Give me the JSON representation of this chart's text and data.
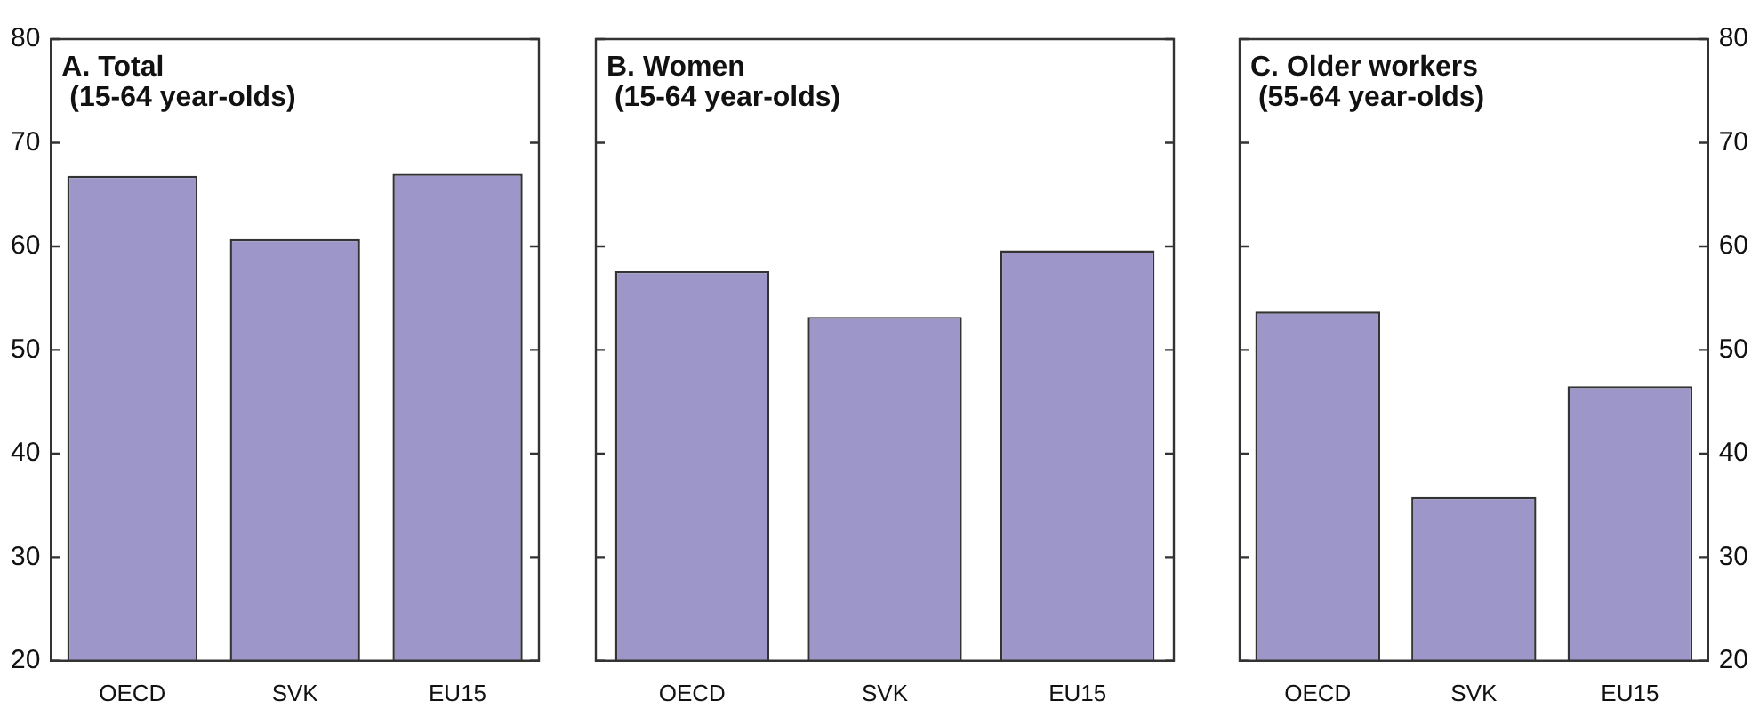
{
  "chart_data": [
    {
      "type": "bar",
      "title": "A. Total",
      "subtitle": "(15-64 year-olds)",
      "categories": [
        "OECD",
        "SVK",
        "EU15"
      ],
      "series": [
        {
          "color": "#9d97c9",
          "values": [
            66.8,
            60.7,
            67.0
          ]
        }
      ],
      "ylim": [
        20,
        80
      ],
      "yticks": [
        20,
        30,
        40,
        50,
        60,
        70,
        80
      ],
      "grid": false,
      "legend": false
    },
    {
      "type": "bar",
      "title": "B. Women",
      "subtitle": "(15-64 year-olds)",
      "categories": [
        "OECD",
        "SVK",
        "EU15"
      ],
      "series": [
        {
          "color": "#9d97c9",
          "values": [
            57.6,
            53.2,
            59.6
          ]
        }
      ],
      "ylim": [
        20,
        80
      ],
      "yticks": [
        20,
        30,
        40,
        50,
        60,
        70,
        80
      ],
      "grid": false,
      "legend": false,
      "tick_labels": "x"
    },
    {
      "type": "bar",
      "title": "C. Older workers",
      "subtitle": "(55-64 year-olds)",
      "categories": [
        "OECD",
        "SVK",
        "EU15"
      ],
      "series": [
        {
          "color": "#9d97c9",
          "values": [
            53.7,
            35.8,
            46.5
          ],
          "axis": "y2"
        }
      ],
      "y2lim": [
        20,
        80
      ],
      "y2ticks": [
        20,
        30,
        40,
        50,
        60,
        70,
        80
      ],
      "grid": false,
      "legend": false
    }
  ]
}
